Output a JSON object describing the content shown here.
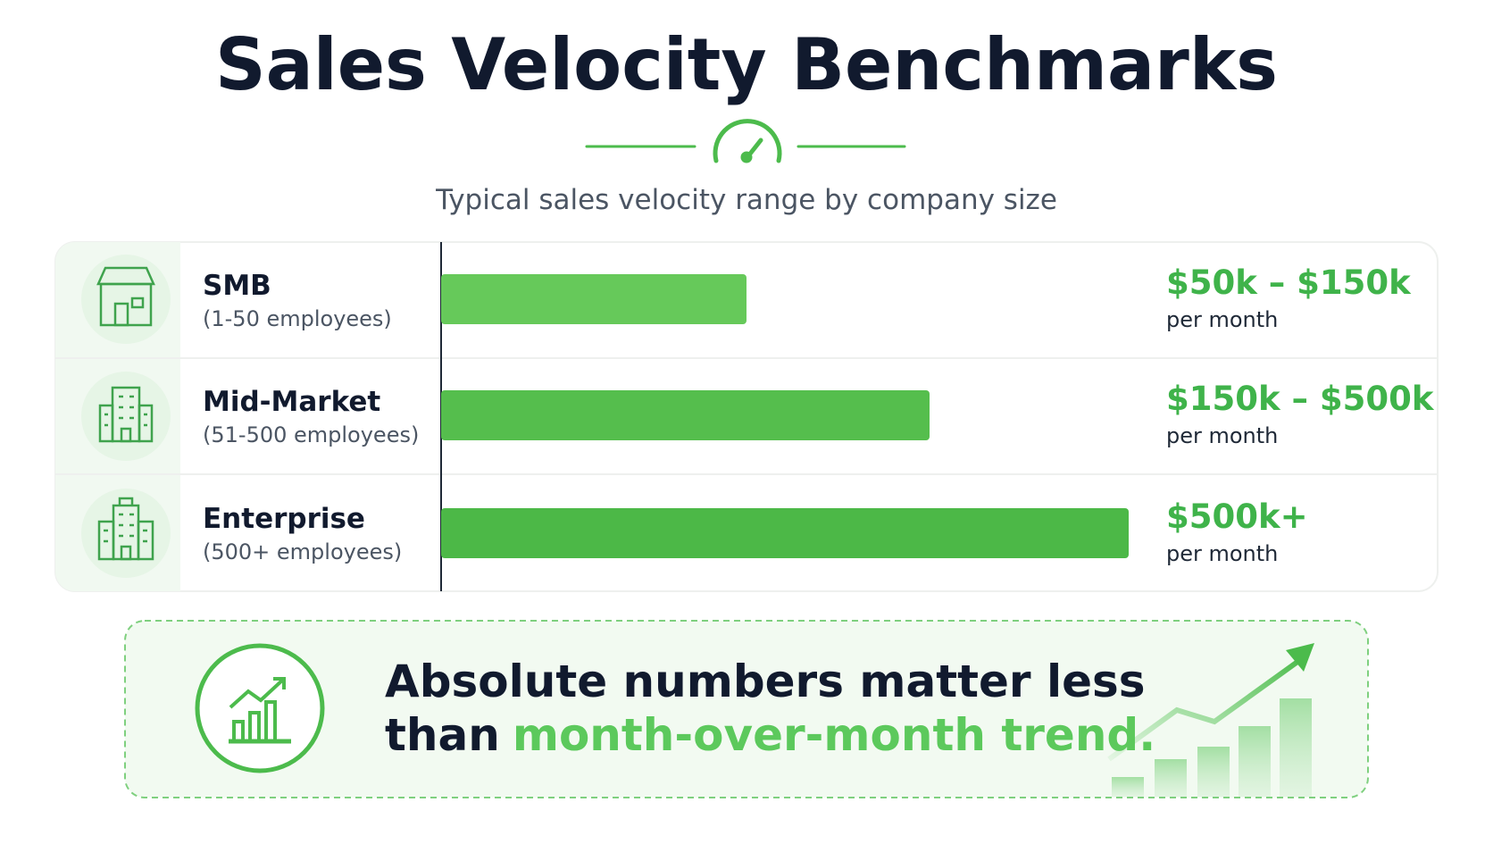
{
  "header": {
    "title": "Sales Velocity Benchmarks",
    "subtitle": "Typical sales velocity range by company size"
  },
  "rows": [
    {
      "name": "SMB",
      "detail": "(1-50 employees)",
      "range": "$50k – $150k",
      "unit": "per month"
    },
    {
      "name": "Mid-Market",
      "detail": "(51-500 employees)",
      "range": "$150k – $500k",
      "unit": "per month"
    },
    {
      "name": "Enterprise",
      "detail": "(500+ employees)",
      "range": "$500k+",
      "unit": "per month"
    }
  ],
  "callout": {
    "line1": "Absolute numbers matter less",
    "line2": "than",
    "highlight": "month-over-month trend."
  }
}
